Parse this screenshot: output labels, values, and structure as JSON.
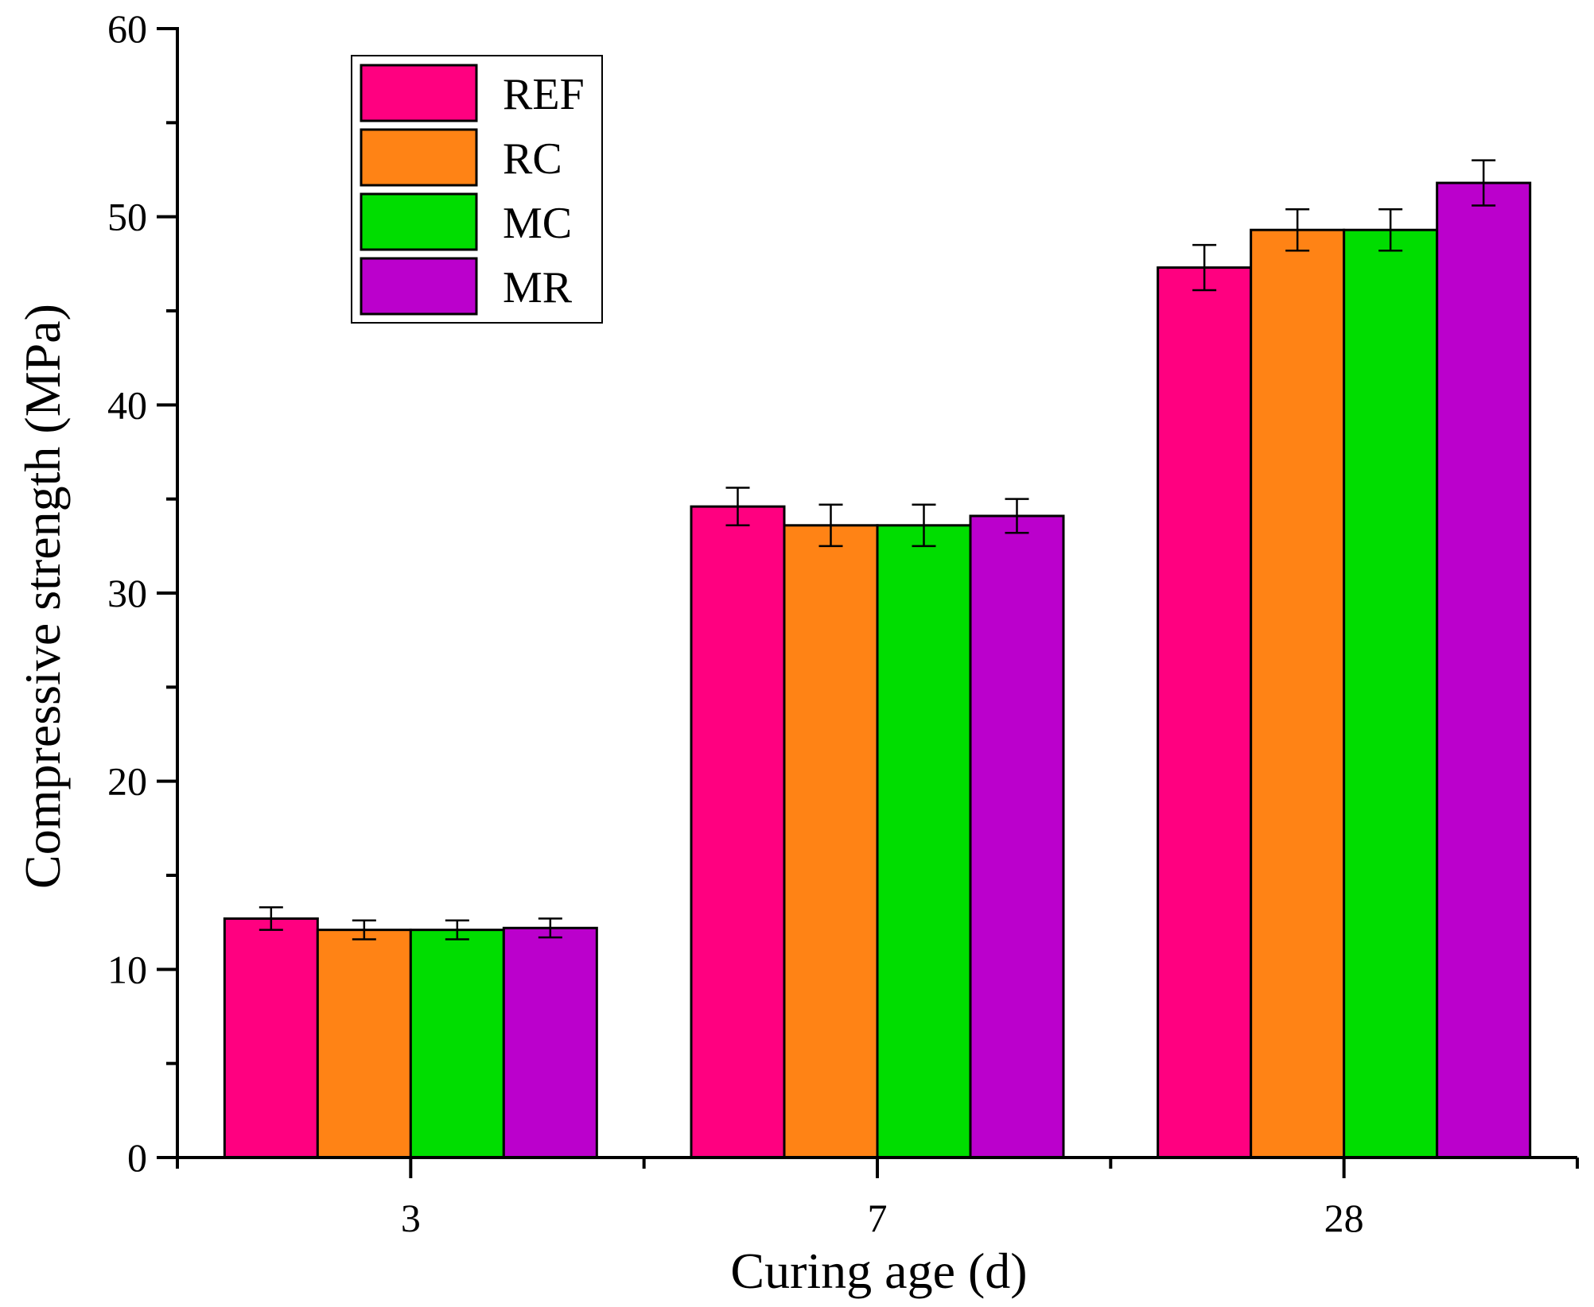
{
  "chart_data": {
    "type": "bar",
    "title": "",
    "xlabel": "Curing age (d)",
    "ylabel": "Compressive strength (MPa)",
    "categories": [
      "3",
      "7",
      "28"
    ],
    "ylim": [
      0,
      60
    ],
    "yticks": [
      0,
      10,
      20,
      30,
      40,
      50,
      60
    ],
    "grid": false,
    "legend_position": "top-left",
    "series": [
      {
        "name": "REF",
        "color": "#FF0080",
        "values": [
          12.7,
          34.6,
          47.3
        ],
        "errors": [
          0.6,
          1.0,
          1.2
        ]
      },
      {
        "name": "RC",
        "color": "#FF8315",
        "values": [
          12.1,
          33.6,
          49.3
        ],
        "errors": [
          0.5,
          1.1,
          1.1
        ]
      },
      {
        "name": "MC",
        "color": "#00DD00",
        "values": [
          12.1,
          33.6,
          49.3
        ],
        "errors": [
          0.5,
          1.1,
          1.1
        ]
      },
      {
        "name": "MR",
        "color": "#BB00CC",
        "values": [
          12.2,
          34.1,
          51.8
        ],
        "errors": [
          0.5,
          0.9,
          1.2
        ]
      }
    ]
  }
}
